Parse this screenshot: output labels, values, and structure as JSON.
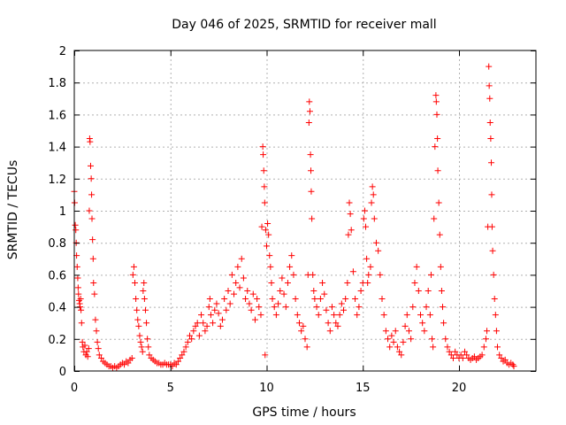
{
  "chart_data": {
    "type": "scatter",
    "title": "Day 046 of 2025, SRMTID for receiver mall",
    "xlabel": "GPS time / hours",
    "ylabel": "SRMTID / TECUs",
    "xlim": [
      0,
      24
    ],
    "ylim": [
      0,
      2
    ],
    "x_ticks": [
      0,
      5,
      10,
      15,
      20
    ],
    "x_tick_labels": [
      "0",
      "5",
      "10",
      "15",
      "20"
    ],
    "y_ticks": [
      0,
      0.2,
      0.4,
      0.6,
      0.8,
      1,
      1.2,
      1.4,
      1.6,
      1.8,
      2
    ],
    "y_tick_labels": [
      "0",
      "0.2",
      "0.4",
      "0.6",
      "0.8",
      "1",
      "1.2",
      "1.4",
      "1.6",
      "1.8",
      "2"
    ],
    "grid": true,
    "marker": "+",
    "color": "#ff0000",
    "series": [
      {
        "name": "SRMTID",
        "points": [
          [
            0.0,
            1.12
          ],
          [
            0.02,
            1.05
          ],
          [
            0.05,
            0.91
          ],
          [
            0.08,
            0.88
          ],
          [
            0.1,
            0.8
          ],
          [
            0.12,
            0.72
          ],
          [
            0.15,
            0.65
          ],
          [
            0.18,
            0.58
          ],
          [
            0.2,
            0.52
          ],
          [
            0.22,
            0.48
          ],
          [
            0.25,
            0.44
          ],
          [
            0.28,
            0.42
          ],
          [
            0.3,
            0.4
          ],
          [
            0.33,
            0.45
          ],
          [
            0.35,
            0.38
          ],
          [
            0.38,
            0.3
          ],
          [
            0.42,
            0.18
          ],
          [
            0.45,
            0.15
          ],
          [
            0.5,
            0.12
          ],
          [
            0.55,
            0.16
          ],
          [
            0.6,
            0.1
          ],
          [
            0.65,
            0.12
          ],
          [
            0.7,
            0.09
          ],
          [
            0.75,
            0.14
          ],
          [
            0.78,
            1.0
          ],
          [
            0.8,
            1.45
          ],
          [
            0.82,
            1.43
          ],
          [
            0.85,
            1.28
          ],
          [
            0.88,
            1.2
          ],
          [
            0.9,
            1.1
          ],
          [
            0.92,
            0.95
          ],
          [
            0.95,
            0.82
          ],
          [
            0.98,
            0.7
          ],
          [
            1.0,
            0.55
          ],
          [
            1.05,
            0.48
          ],
          [
            1.1,
            0.32
          ],
          [
            1.15,
            0.25
          ],
          [
            1.2,
            0.18
          ],
          [
            1.25,
            0.14
          ],
          [
            1.3,
            0.1
          ],
          [
            1.4,
            0.08
          ],
          [
            1.5,
            0.06
          ],
          [
            1.6,
            0.05
          ],
          [
            1.7,
            0.04
          ],
          [
            1.8,
            0.03
          ],
          [
            1.9,
            0.03
          ],
          [
            2.0,
            0.02
          ],
          [
            2.1,
            0.03
          ],
          [
            2.2,
            0.02
          ],
          [
            2.3,
            0.03
          ],
          [
            2.4,
            0.04
          ],
          [
            2.5,
            0.05
          ],
          [
            2.6,
            0.04
          ],
          [
            2.7,
            0.06
          ],
          [
            2.8,
            0.05
          ],
          [
            2.9,
            0.07
          ],
          [
            3.0,
            0.08
          ],
          [
            3.05,
            0.6
          ],
          [
            3.1,
            0.65
          ],
          [
            3.15,
            0.55
          ],
          [
            3.2,
            0.45
          ],
          [
            3.25,
            0.38
          ],
          [
            3.3,
            0.32
          ],
          [
            3.35,
            0.28
          ],
          [
            3.4,
            0.22
          ],
          [
            3.45,
            0.18
          ],
          [
            3.5,
            0.15
          ],
          [
            3.55,
            0.12
          ],
          [
            3.58,
            0.5
          ],
          [
            3.62,
            0.55
          ],
          [
            3.65,
            0.45
          ],
          [
            3.7,
            0.38
          ],
          [
            3.75,
            0.3
          ],
          [
            3.8,
            0.2
          ],
          [
            3.85,
            0.15
          ],
          [
            3.9,
            0.1
          ],
          [
            4.0,
            0.08
          ],
          [
            4.1,
            0.07
          ],
          [
            4.2,
            0.06
          ],
          [
            4.3,
            0.05
          ],
          [
            4.4,
            0.05
          ],
          [
            4.5,
            0.04
          ],
          [
            4.6,
            0.04
          ],
          [
            4.7,
            0.05
          ],
          [
            4.8,
            0.04
          ],
          [
            4.9,
            0.04
          ],
          [
            5.0,
            0.04
          ],
          [
            5.1,
            0.03
          ],
          [
            5.2,
            0.05
          ],
          [
            5.3,
            0.04
          ],
          [
            5.4,
            0.06
          ],
          [
            5.5,
            0.08
          ],
          [
            5.6,
            0.1
          ],
          [
            5.7,
            0.12
          ],
          [
            5.8,
            0.15
          ],
          [
            5.9,
            0.18
          ],
          [
            6.0,
            0.22
          ],
          [
            6.1,
            0.2
          ],
          [
            6.2,
            0.25
          ],
          [
            6.3,
            0.28
          ],
          [
            6.4,
            0.3
          ],
          [
            6.5,
            0.22
          ],
          [
            6.6,
            0.35
          ],
          [
            6.7,
            0.3
          ],
          [
            6.8,
            0.25
          ],
          [
            6.9,
            0.28
          ],
          [
            7.0,
            0.4
          ],
          [
            7.05,
            0.45
          ],
          [
            7.1,
            0.35
          ],
          [
            7.2,
            0.3
          ],
          [
            7.3,
            0.38
          ],
          [
            7.4,
            0.42
          ],
          [
            7.5,
            0.36
          ],
          [
            7.6,
            0.28
          ],
          [
            7.7,
            0.32
          ],
          [
            7.8,
            0.45
          ],
          [
            7.9,
            0.38
          ],
          [
            8.0,
            0.5
          ],
          [
            8.1,
            0.42
          ],
          [
            8.2,
            0.6
          ],
          [
            8.3,
            0.48
          ],
          [
            8.4,
            0.55
          ],
          [
            8.5,
            0.65
          ],
          [
            8.6,
            0.52
          ],
          [
            8.7,
            0.7
          ],
          [
            8.8,
            0.58
          ],
          [
            8.9,
            0.45
          ],
          [
            9.0,
            0.5
          ],
          [
            9.1,
            0.42
          ],
          [
            9.2,
            0.38
          ],
          [
            9.3,
            0.48
          ],
          [
            9.4,
            0.32
          ],
          [
            9.5,
            0.45
          ],
          [
            9.6,
            0.4
          ],
          [
            9.7,
            0.35
          ],
          [
            9.75,
            0.9
          ],
          [
            9.8,
            1.4
          ],
          [
            9.82,
            1.35
          ],
          [
            9.85,
            1.25
          ],
          [
            9.88,
            1.15
          ],
          [
            9.9,
            1.05
          ],
          [
            9.92,
            0.1
          ],
          [
            9.95,
            0.88
          ],
          [
            10.0,
            0.78
          ],
          [
            10.05,
            0.92
          ],
          [
            10.1,
            0.85
          ],
          [
            10.15,
            0.72
          ],
          [
            10.2,
            0.65
          ],
          [
            10.25,
            0.55
          ],
          [
            10.3,
            0.45
          ],
          [
            10.4,
            0.4
          ],
          [
            10.5,
            0.35
          ],
          [
            10.6,
            0.42
          ],
          [
            10.7,
            0.5
          ],
          [
            10.8,
            0.58
          ],
          [
            10.9,
            0.48
          ],
          [
            11.0,
            0.4
          ],
          [
            11.1,
            0.55
          ],
          [
            11.2,
            0.65
          ],
          [
            11.3,
            0.72
          ],
          [
            11.4,
            0.6
          ],
          [
            11.5,
            0.45
          ],
          [
            11.6,
            0.35
          ],
          [
            11.7,
            0.3
          ],
          [
            11.8,
            0.25
          ],
          [
            11.9,
            0.28
          ],
          [
            12.0,
            0.2
          ],
          [
            12.1,
            0.15
          ],
          [
            12.15,
            0.6
          ],
          [
            12.2,
            1.55
          ],
          [
            12.22,
            1.68
          ],
          [
            12.25,
            1.62
          ],
          [
            12.28,
            1.35
          ],
          [
            12.3,
            1.25
          ],
          [
            12.32,
            1.12
          ],
          [
            12.35,
            0.95
          ],
          [
            12.4,
            0.6
          ],
          [
            12.45,
            0.5
          ],
          [
            12.5,
            0.45
          ],
          [
            12.6,
            0.4
          ],
          [
            12.7,
            0.35
          ],
          [
            12.8,
            0.45
          ],
          [
            12.9,
            0.55
          ],
          [
            13.0,
            0.48
          ],
          [
            13.1,
            0.38
          ],
          [
            13.2,
            0.3
          ],
          [
            13.3,
            0.25
          ],
          [
            13.4,
            0.4
          ],
          [
            13.5,
            0.35
          ],
          [
            13.6,
            0.3
          ],
          [
            13.7,
            0.28
          ],
          [
            13.8,
            0.35
          ],
          [
            13.9,
            0.42
          ],
          [
            14.0,
            0.38
          ],
          [
            14.1,
            0.45
          ],
          [
            14.2,
            0.55
          ],
          [
            14.25,
            0.85
          ],
          [
            14.3,
            1.05
          ],
          [
            14.35,
            0.98
          ],
          [
            14.4,
            0.88
          ],
          [
            14.5,
            0.62
          ],
          [
            14.6,
            0.45
          ],
          [
            14.7,
            0.35
          ],
          [
            14.8,
            0.4
          ],
          [
            14.9,
            0.5
          ],
          [
            15.0,
            0.55
          ],
          [
            15.05,
            0.95
          ],
          [
            15.1,
            1.0
          ],
          [
            15.15,
            0.9
          ],
          [
            15.2,
            0.7
          ],
          [
            15.25,
            0.55
          ],
          [
            15.3,
            0.6
          ],
          [
            15.4,
            0.65
          ],
          [
            15.45,
            1.05
          ],
          [
            15.5,
            1.15
          ],
          [
            15.55,
            1.1
          ],
          [
            15.6,
            0.95
          ],
          [
            15.7,
            0.8
          ],
          [
            15.8,
            0.75
          ],
          [
            15.9,
            0.6
          ],
          [
            16.0,
            0.45
          ],
          [
            16.1,
            0.35
          ],
          [
            16.2,
            0.25
          ],
          [
            16.3,
            0.2
          ],
          [
            16.4,
            0.15
          ],
          [
            16.5,
            0.22
          ],
          [
            16.6,
            0.18
          ],
          [
            16.7,
            0.25
          ],
          [
            16.8,
            0.15
          ],
          [
            16.9,
            0.12
          ],
          [
            17.0,
            0.1
          ],
          [
            17.1,
            0.18
          ],
          [
            17.2,
            0.28
          ],
          [
            17.3,
            0.35
          ],
          [
            17.4,
            0.25
          ],
          [
            17.5,
            0.2
          ],
          [
            17.6,
            0.4
          ],
          [
            17.7,
            0.55
          ],
          [
            17.8,
            0.65
          ],
          [
            17.9,
            0.5
          ],
          [
            18.0,
            0.35
          ],
          [
            18.1,
            0.3
          ],
          [
            18.2,
            0.25
          ],
          [
            18.3,
            0.4
          ],
          [
            18.4,
            0.5
          ],
          [
            18.5,
            0.35
          ],
          [
            18.55,
            0.6
          ],
          [
            18.6,
            0.2
          ],
          [
            18.65,
            0.15
          ],
          [
            18.7,
            0.95
          ],
          [
            18.75,
            1.4
          ],
          [
            18.8,
            1.72
          ],
          [
            18.82,
            1.68
          ],
          [
            18.85,
            1.6
          ],
          [
            18.88,
            1.45
          ],
          [
            18.9,
            1.25
          ],
          [
            18.95,
            1.05
          ],
          [
            19.0,
            0.85
          ],
          [
            19.05,
            0.65
          ],
          [
            19.1,
            0.5
          ],
          [
            19.15,
            0.4
          ],
          [
            19.2,
            0.3
          ],
          [
            19.3,
            0.2
          ],
          [
            19.4,
            0.15
          ],
          [
            19.5,
            0.12
          ],
          [
            19.6,
            0.1
          ],
          [
            19.7,
            0.08
          ],
          [
            19.8,
            0.12
          ],
          [
            19.9,
            0.1
          ],
          [
            20.0,
            0.08
          ],
          [
            20.1,
            0.1
          ],
          [
            20.2,
            0.08
          ],
          [
            20.3,
            0.12
          ],
          [
            20.4,
            0.1
          ],
          [
            20.5,
            0.08
          ],
          [
            20.6,
            0.07
          ],
          [
            20.7,
            0.08
          ],
          [
            20.8,
            0.09
          ],
          [
            20.9,
            0.07
          ],
          [
            21.0,
            0.08
          ],
          [
            21.1,
            0.09
          ],
          [
            21.2,
            0.1
          ],
          [
            21.3,
            0.15
          ],
          [
            21.4,
            0.2
          ],
          [
            21.45,
            0.25
          ],
          [
            21.5,
            0.9
          ],
          [
            21.55,
            1.9
          ],
          [
            21.57,
            1.78
          ],
          [
            21.6,
            1.7
          ],
          [
            21.62,
            1.55
          ],
          [
            21.65,
            1.45
          ],
          [
            21.68,
            1.3
          ],
          [
            21.7,
            1.1
          ],
          [
            21.72,
            0.9
          ],
          [
            21.75,
            0.75
          ],
          [
            21.8,
            0.6
          ],
          [
            21.85,
            0.45
          ],
          [
            21.9,
            0.35
          ],
          [
            21.95,
            0.25
          ],
          [
            22.0,
            0.15
          ],
          [
            22.1,
            0.1
          ],
          [
            22.2,
            0.08
          ],
          [
            22.3,
            0.06
          ],
          [
            22.4,
            0.07
          ],
          [
            22.5,
            0.05
          ],
          [
            22.6,
            0.04
          ],
          [
            22.7,
            0.05
          ],
          [
            22.8,
            0.04
          ],
          [
            22.85,
            0.03
          ]
        ]
      }
    ]
  }
}
